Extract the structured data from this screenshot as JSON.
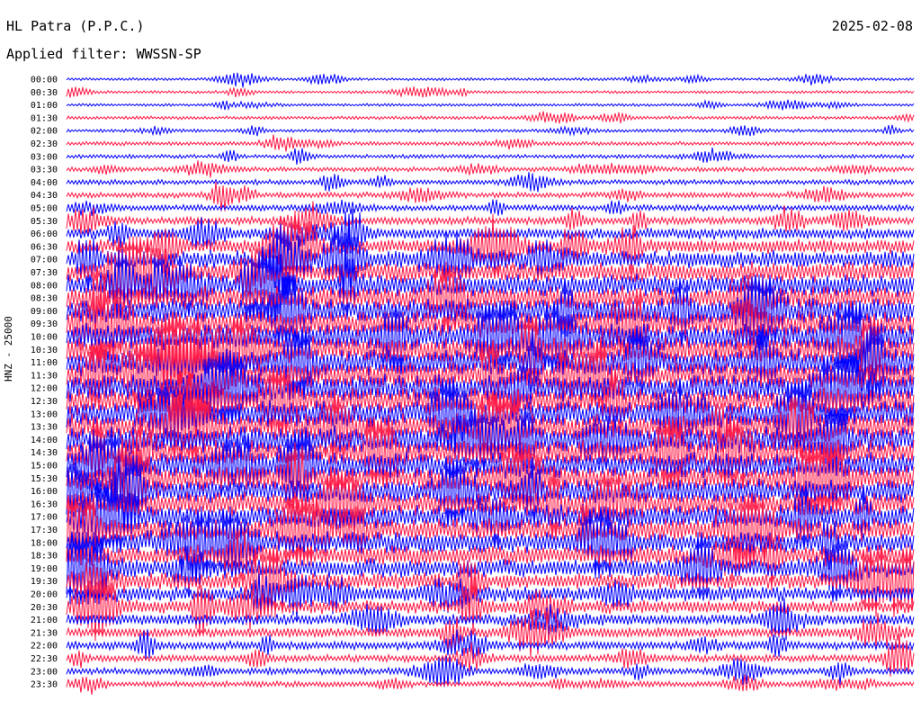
{
  "header": {
    "station": "HL Patra (P.P.C.)",
    "date": "2025-02-08",
    "filter": "Applied filter: WWSSN-SP"
  },
  "channel_label": "HNZ - 25000",
  "colors": {
    "blue": "#0000ff",
    "red": "#ff1744",
    "background": "#ffffff",
    "text": "#000000"
  },
  "chart_data": {
    "type": "line",
    "subtype": "helicorder",
    "title": "HL Patra (P.P.C.)",
    "ylabel": "HNZ - 25000",
    "trace_minutes": 30,
    "grid": false,
    "row_labels": [
      "00:00",
      "00:30",
      "01:00",
      "01:30",
      "02:00",
      "02:30",
      "03:00",
      "03:30",
      "04:00",
      "04:30",
      "05:00",
      "05:30",
      "06:00",
      "06:30",
      "07:00",
      "07:30",
      "08:00",
      "08:30",
      "09:00",
      "09:30",
      "10:00",
      "10:30",
      "11:00",
      "11:30",
      "12:00",
      "12:30",
      "13:00",
      "13:30",
      "14:00",
      "14:30",
      "15:00",
      "15:30",
      "16:00",
      "16:30",
      "17:00",
      "17:30",
      "18:00",
      "18:30",
      "19:00",
      "19:30",
      "20:00",
      "20:30",
      "21:00",
      "21:30",
      "22:00",
      "22:30",
      "23:00",
      "23:30"
    ],
    "relative_noise_amplitude": [
      0.05,
      0.05,
      0.05,
      0.06,
      0.06,
      0.07,
      0.07,
      0.08,
      0.09,
      0.1,
      0.11,
      0.14,
      0.2,
      0.26,
      0.32,
      0.36,
      0.4,
      0.42,
      0.45,
      0.46,
      0.47,
      0.48,
      0.48,
      0.48,
      0.48,
      0.48,
      0.48,
      0.48,
      0.48,
      0.46,
      0.46,
      0.45,
      0.44,
      0.43,
      0.42,
      0.4,
      0.38,
      0.36,
      0.34,
      0.3,
      0.27,
      0.24,
      0.2,
      0.18,
      0.15,
      0.13,
      0.12,
      0.1
    ],
    "color_cycle": [
      "blue",
      "red"
    ]
  }
}
